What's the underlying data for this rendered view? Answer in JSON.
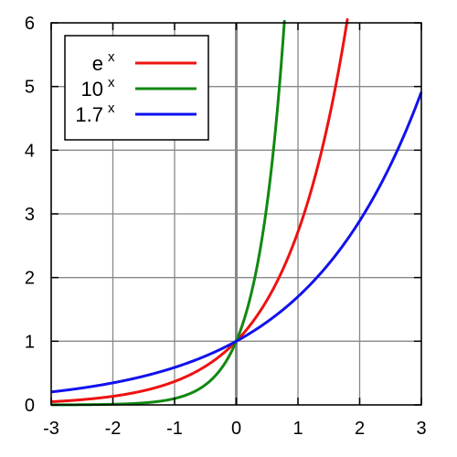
{
  "chart_data": {
    "type": "line",
    "title": "",
    "xlabel": "",
    "ylabel": "",
    "xlim": [
      -3,
      3
    ],
    "ylim": [
      0,
      6
    ],
    "x_ticks": [
      "-3",
      "-2",
      "-1",
      "0",
      "1",
      "2",
      "3"
    ],
    "y_ticks": [
      "0",
      "1",
      "2",
      "3",
      "4",
      "5",
      "6"
    ],
    "grid": true,
    "legend_position": "top-left",
    "series": [
      {
        "name": "e",
        "exponent_label": "x",
        "base": 2.718281828,
        "color": "#ee1111"
      },
      {
        "name": "10",
        "exponent_label": "x",
        "base": 10,
        "color": "#118811"
      },
      {
        "name": "1.7",
        "exponent_label": "x",
        "base": 1.7,
        "color": "#1111ee"
      }
    ]
  }
}
